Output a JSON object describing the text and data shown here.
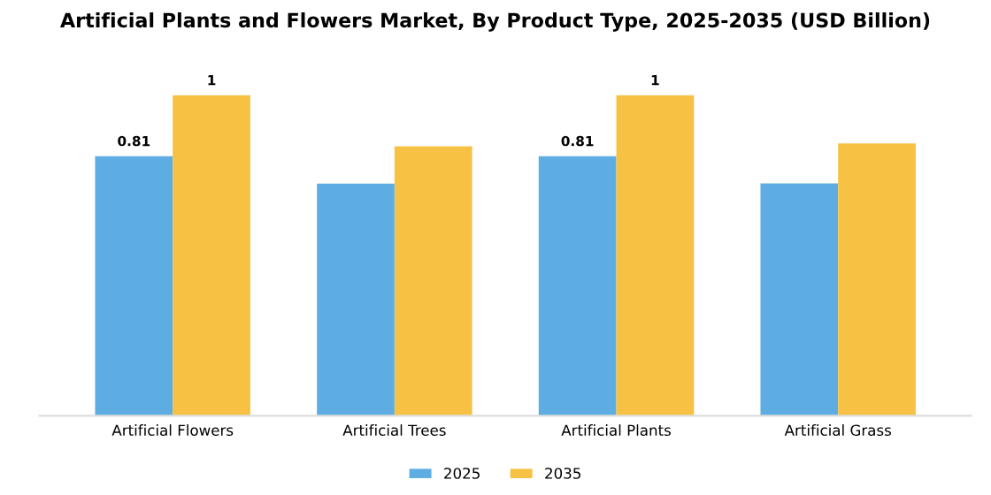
{
  "chart_data": {
    "type": "bar",
    "title": "Artificial Plants and Flowers Market, By Product Type, 2025-2035 (USD Billion)",
    "categories": [
      "Artificial Flowers",
      "Artificial Trees",
      "Artificial Plants",
      "Artificial Grass"
    ],
    "legend": "bottom",
    "grid": false,
    "series": [
      {
        "name": "2025",
        "color": "#5dade2",
        "values": [
          0.81,
          0.724,
          0.81,
          0.725
        ],
        "value_labels": [
          "0.81",
          null,
          "0.81",
          null
        ]
      },
      {
        "name": "2035",
        "color": "#f7c244",
        "values": [
          1,
          0.841,
          1,
          0.85
        ],
        "value_labels": [
          "1",
          null,
          "1",
          null
        ]
      }
    ]
  }
}
